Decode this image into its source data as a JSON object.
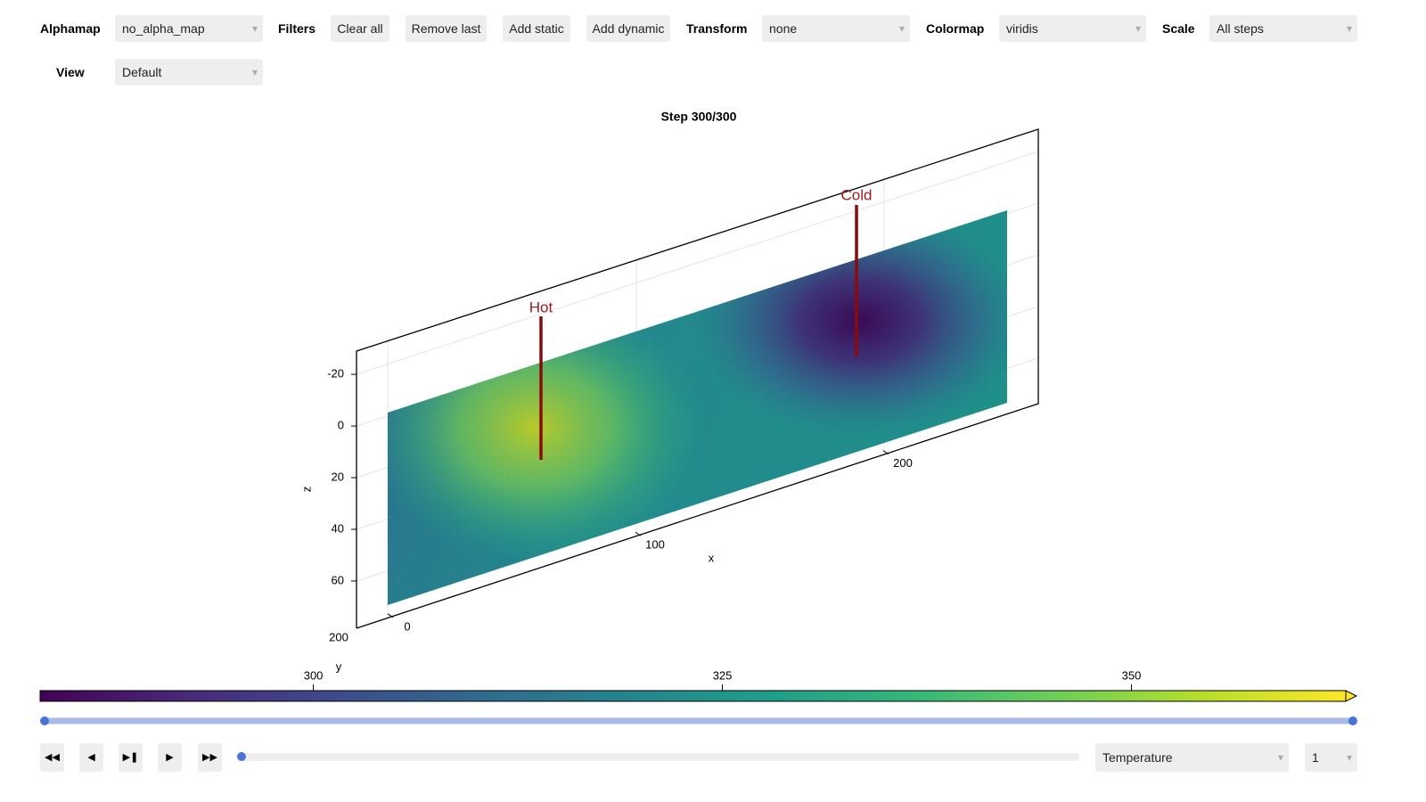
{
  "toolbar": {
    "alphamap_label": "Alphamap",
    "alphamap": "no_alpha_map",
    "filters_label": "Filters",
    "buttons": [
      "Clear all",
      "Remove last",
      "Add static",
      "Add dynamic"
    ],
    "transform_label": "Transform",
    "transform": "none",
    "colormap_label": "Colormap",
    "colormap": "viridis",
    "scale_label": "Scale",
    "scale": "All steps",
    "view_label": "View",
    "view": "Default"
  },
  "plot": {
    "title": "Step 300/300",
    "annotations": [
      "Hot",
      "Cold"
    ],
    "x_label": "x",
    "y_label": "y",
    "z_label": "z",
    "xlim": [
      -14.4,
      260.8
    ],
    "xticks": [
      0,
      100,
      200
    ],
    "zlim": [
      -29,
      78.3
    ],
    "zticks": [
      -20,
      0,
      20,
      40,
      60
    ],
    "yticks": [
      200
    ]
  },
  "colorbar": {
    "lim": [
      283.3,
      363.1
    ],
    "ticks": [
      300,
      325,
      350
    ]
  },
  "controls": {
    "variable": "Temperature",
    "index": "1"
  }
}
